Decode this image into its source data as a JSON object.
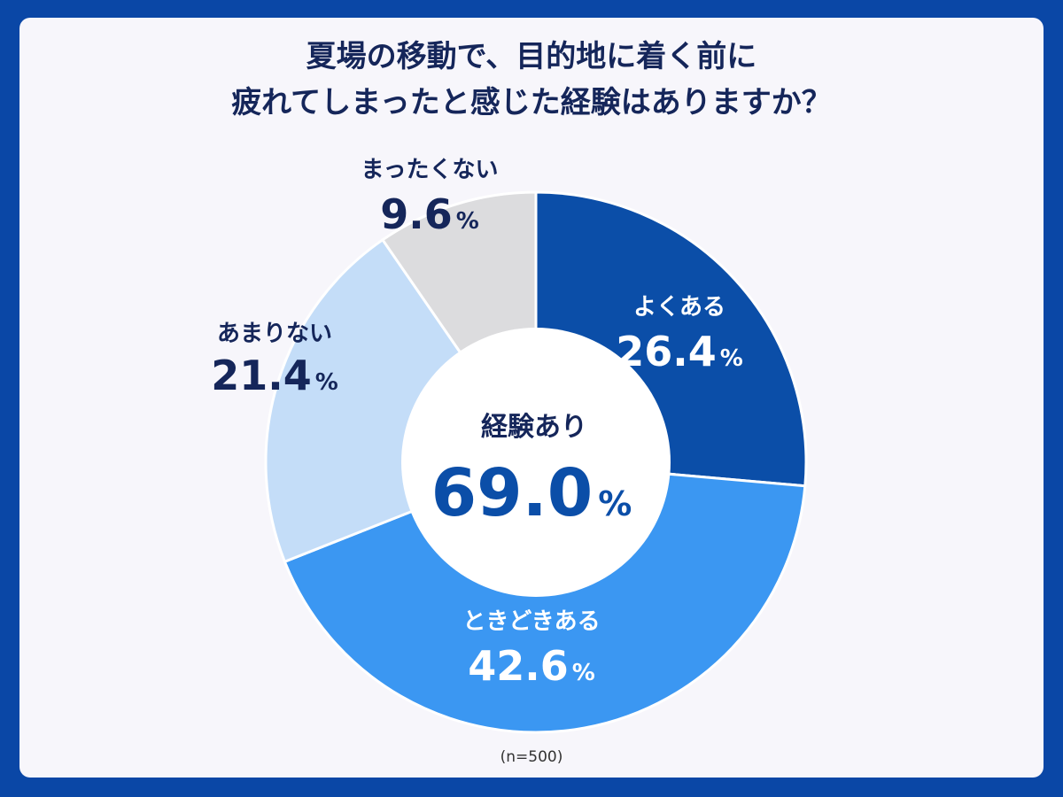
{
  "title": {
    "line1": "夏場の移動で、目的地に着く前に",
    "line2": "疲れてしまったと感じた経験はありますか？"
  },
  "center": {
    "label": "経験あり",
    "value": "69.0",
    "unit": "%"
  },
  "sample_note": "(n=500)",
  "chart_data": {
    "type": "pie",
    "title": "夏場の移動で、目的地に着く前に疲れてしまったと感じた経験はありますか？",
    "unit": "%",
    "slices": [
      {
        "label": "よくある",
        "value": 26.4,
        "color": "#0b4ea8",
        "text_color": "#ffffff"
      },
      {
        "label": "ときどきある",
        "value": 42.6,
        "color": "#3b97f2",
        "text_color": "#ffffff"
      },
      {
        "label": "あまりない",
        "value": 21.4,
        "color": "#c4ddf8",
        "text_color": "#15265a"
      },
      {
        "label": "まったくない",
        "value": 9.6,
        "color": "#dcdcde",
        "text_color": "#15265a"
      }
    ],
    "center_label": "経験あり",
    "center_value": 69.0,
    "n": 500
  }
}
